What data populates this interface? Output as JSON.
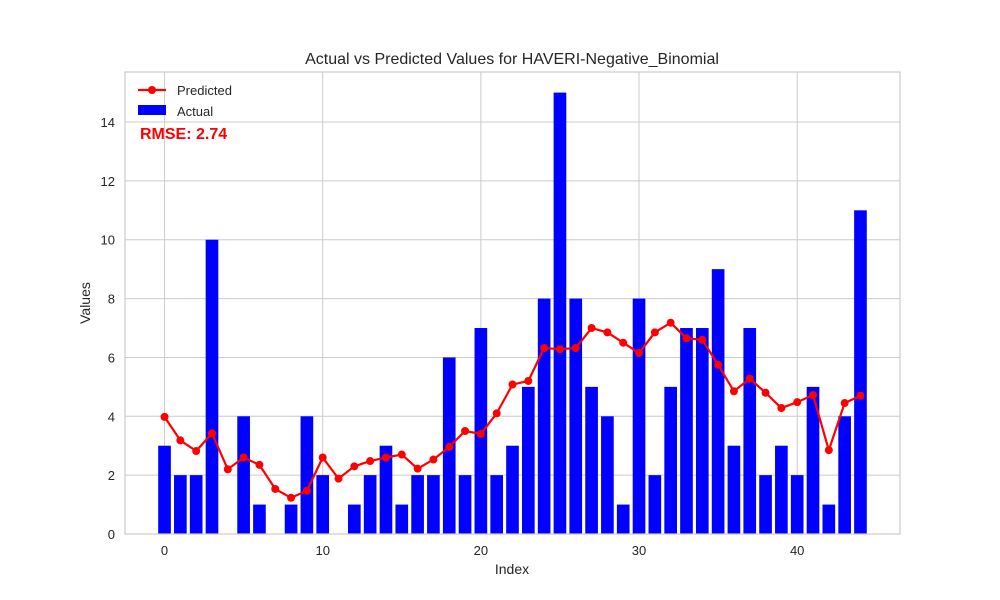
{
  "chart_data": {
    "type": "bar",
    "title": "Actual vs Predicted Values for HAVERI-Negative_Binomial",
    "xlabel": "Index",
    "ylabel": "Values",
    "xlim": [
      -2.5,
      46.5
    ],
    "ylim": [
      0,
      15.7
    ],
    "xticks": [
      0,
      10,
      20,
      30,
      40
    ],
    "yticks": [
      0,
      2,
      4,
      6,
      8,
      10,
      12,
      14
    ],
    "grid": true,
    "legend_position": "top-left",
    "annotation": "RMSE: 2.74",
    "x": [
      0,
      1,
      2,
      3,
      4,
      5,
      6,
      7,
      8,
      9,
      10,
      11,
      12,
      13,
      14,
      15,
      16,
      17,
      18,
      19,
      20,
      21,
      22,
      23,
      24,
      25,
      26,
      27,
      28,
      29,
      30,
      31,
      32,
      33,
      34,
      35,
      36,
      37,
      38,
      39,
      40,
      41,
      42,
      43,
      44
    ],
    "series": [
      {
        "name": "Actual",
        "type": "bar",
        "color": "#0000ff",
        "values": [
          3,
          2,
          2,
          10,
          0,
          4,
          1,
          0,
          1,
          4,
          2,
          0,
          1,
          2,
          3,
          1,
          2,
          2,
          6,
          2,
          7,
          2,
          3,
          5,
          8,
          15,
          8,
          5,
          4,
          1,
          8,
          2,
          5,
          7,
          7,
          9,
          3,
          7,
          2,
          3,
          2,
          5,
          1,
          4,
          11
        ]
      },
      {
        "name": "Predicted",
        "type": "line",
        "color": "#ff0000",
        "values": [
          3.98,
          3.18,
          2.82,
          3.42,
          2.2,
          2.6,
          2.35,
          1.53,
          1.23,
          1.47,
          2.6,
          1.88,
          2.3,
          2.48,
          2.6,
          2.7,
          2.22,
          2.53,
          2.96,
          3.5,
          3.4,
          4.1,
          5.08,
          5.2,
          6.32,
          6.28,
          6.32,
          7.0,
          6.85,
          6.5,
          6.15,
          6.85,
          7.18,
          6.65,
          6.6,
          5.75,
          4.85,
          5.28,
          4.8,
          4.28,
          4.48,
          4.72,
          2.85,
          4.45,
          4.7
        ]
      }
    ]
  }
}
